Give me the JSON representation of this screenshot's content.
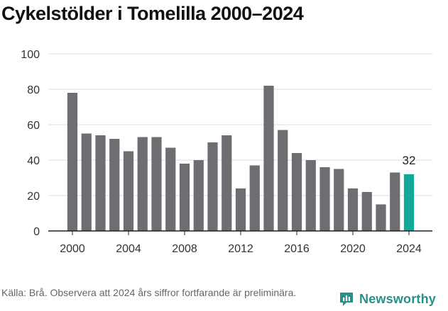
{
  "chart_data": {
    "type": "bar",
    "title": "Cykelstölder i Tomelilla 2000–2024",
    "x": [
      2000,
      2001,
      2002,
      2003,
      2004,
      2005,
      2006,
      2007,
      2008,
      2009,
      2010,
      2011,
      2012,
      2013,
      2014,
      2015,
      2016,
      2017,
      2018,
      2019,
      2020,
      2021,
      2022,
      2023,
      2024
    ],
    "values": [
      78,
      55,
      54,
      52,
      45,
      53,
      53,
      47,
      38,
      40,
      50,
      54,
      24,
      37,
      82,
      57,
      44,
      40,
      36,
      35,
      24,
      22,
      15,
      33,
      32
    ],
    "xticks": [
      "2000",
      "2004",
      "2008",
      "2012",
      "2016",
      "2020",
      "2024"
    ],
    "yticks": [
      "0",
      "20",
      "40",
      "60",
      "80",
      "100"
    ],
    "ylim": [
      0,
      100
    ],
    "grid": true,
    "highlight_label": "32",
    "colors": {
      "bar": "#6e6d72",
      "highlight": "#12a89a",
      "grid": "#dcdcdc",
      "axis": "#222222",
      "text": "#333333"
    }
  },
  "footer": {
    "source": "Källa: Brå. Observera att 2024 års siffror fortfarande är preliminära.",
    "brand": "Newsworthy",
    "brand_icon": "newsworthy-logo-icon"
  }
}
